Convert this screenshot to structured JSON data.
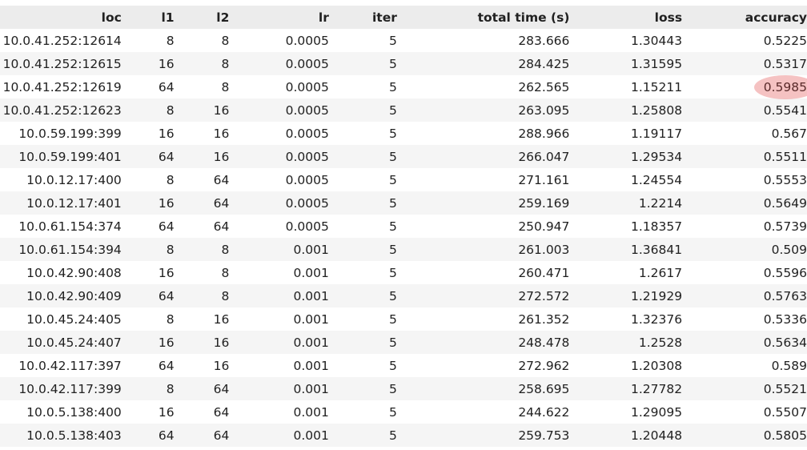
{
  "table": {
    "columns": [
      "loc",
      "l1",
      "l2",
      "lr",
      "iter",
      "total time (s)",
      "loss",
      "accuracy"
    ],
    "rows": [
      [
        "10.0.41.252:12614",
        "8",
        "8",
        "0.0005",
        "5",
        "283.666",
        "1.30443",
        "0.5225"
      ],
      [
        "10.0.41.252:12615",
        "16",
        "8",
        "0.0005",
        "5",
        "284.425",
        "1.31595",
        "0.5317"
      ],
      [
        "10.0.41.252:12619",
        "64",
        "8",
        "0.0005",
        "5",
        "262.565",
        "1.15211",
        "0.5985"
      ],
      [
        "10.0.41.252:12623",
        "8",
        "16",
        "0.0005",
        "5",
        "263.095",
        "1.25808",
        "0.5541"
      ],
      [
        "10.0.59.199:399",
        "16",
        "16",
        "0.0005",
        "5",
        "288.966",
        "1.19117",
        "0.567"
      ],
      [
        "10.0.59.199:401",
        "64",
        "16",
        "0.0005",
        "5",
        "266.047",
        "1.29534",
        "0.5511"
      ],
      [
        "10.0.12.17:400",
        "8",
        "64",
        "0.0005",
        "5",
        "271.161",
        "1.24554",
        "0.5553"
      ],
      [
        "10.0.12.17:401",
        "16",
        "64",
        "0.0005",
        "5",
        "259.169",
        "1.2214",
        "0.5649"
      ],
      [
        "10.0.61.154:374",
        "64",
        "64",
        "0.0005",
        "5",
        "250.947",
        "1.18357",
        "0.5739"
      ],
      [
        "10.0.61.154:394",
        "8",
        "8",
        "0.001",
        "5",
        "261.003",
        "1.36841",
        "0.509"
      ],
      [
        "10.0.42.90:408",
        "16",
        "8",
        "0.001",
        "5",
        "260.471",
        "1.2617",
        "0.5596"
      ],
      [
        "10.0.42.90:409",
        "64",
        "8",
        "0.001",
        "5",
        "272.572",
        "1.21929",
        "0.5763"
      ],
      [
        "10.0.45.24:405",
        "8",
        "16",
        "0.001",
        "5",
        "261.352",
        "1.32376",
        "0.5336"
      ],
      [
        "10.0.45.24:407",
        "16",
        "16",
        "0.001",
        "5",
        "248.478",
        "1.2528",
        "0.5634"
      ],
      [
        "10.0.42.117:397",
        "64",
        "16",
        "0.001",
        "5",
        "272.962",
        "1.20308",
        "0.589"
      ],
      [
        "10.0.42.117:399",
        "8",
        "64",
        "0.001",
        "5",
        "258.695",
        "1.27782",
        "0.5521"
      ],
      [
        "10.0.5.138:400",
        "16",
        "64",
        "0.001",
        "5",
        "244.622",
        "1.29095",
        "0.5507"
      ],
      [
        "10.0.5.138:403",
        "64",
        "64",
        "0.001",
        "5",
        "259.753",
        "1.20448",
        "0.5805"
      ]
    ],
    "highlight": {
      "row": 2,
      "column": 7,
      "color": "#ef9a9a"
    }
  },
  "colors": {
    "header_bg": "#ececec",
    "stripe_bg": "#f5f5f5",
    "text": "#212121"
  }
}
